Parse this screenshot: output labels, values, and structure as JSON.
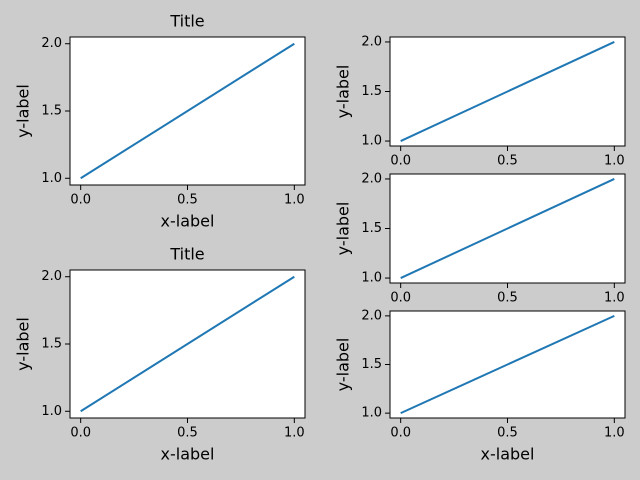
{
  "chart_data": [
    {
      "type": "line",
      "title": "Title",
      "x_label": "x-label",
      "y_label": "y-label",
      "x": [
        0,
        1
      ],
      "values": [
        1,
        2
      ],
      "color": "#1f77b4",
      "xlim": [
        -0.05,
        1.05
      ],
      "ylim": [
        0.95,
        2.05
      ],
      "xticks": [
        {
          "value": 0,
          "label": "0.0"
        },
        0.5,
        {
          "value": 1,
          "label": "1.0"
        }
      ],
      "yticks": [
        {
          "value": 1,
          "label": "1.0"
        },
        1.5,
        {
          "value": 2,
          "label": "2.0"
        }
      ]
    },
    {
      "type": "line",
      "y_label": "y-label",
      "x": [
        0,
        1
      ],
      "values": [
        1,
        2
      ],
      "color": "#1f77b4",
      "xlim": [
        -0.05,
        1.05
      ],
      "ylim": [
        0.95,
        2.05
      ],
      "xticks": [
        {
          "value": 0,
          "label": "0.0"
        },
        0.5,
        {
          "value": 1,
          "label": "1.0"
        }
      ],
      "yticks": [
        {
          "value": 1,
          "label": "1.0"
        },
        1.5,
        {
          "value": 2,
          "label": "2.0"
        }
      ]
    },
    {
      "type": "line",
      "y_label": "y-label",
      "x": [
        0,
        1
      ],
      "values": [
        1,
        2
      ],
      "color": "#1f77b4",
      "xlim": [
        -0.05,
        1.05
      ],
      "ylim": [
        0.95,
        2.05
      ],
      "xticks": [
        {
          "value": 0,
          "label": "0.0"
        },
        0.5,
        {
          "value": 1,
          "label": "1.0"
        }
      ],
      "yticks": [
        {
          "value": 1,
          "label": "1.0"
        },
        1.5,
        {
          "value": 2,
          "label": "2.0"
        }
      ]
    },
    {
      "type": "line",
      "title": "Title",
      "x_label": "x-label",
      "y_label": "y-label",
      "x": [
        0,
        1
      ],
      "values": [
        1,
        2
      ],
      "color": "#1f77b4",
      "xlim": [
        -0.05,
        1.05
      ],
      "ylim": [
        0.95,
        2.05
      ],
      "xticks": [
        {
          "value": 0,
          "label": "0.0"
        },
        0.5,
        {
          "value": 1,
          "label": "1.0"
        }
      ],
      "yticks": [
        {
          "value": 1,
          "label": "1.0"
        },
        1.5,
        {
          "value": 2,
          "label": "2.0"
        }
      ]
    },
    {
      "type": "line",
      "x_label": "x-label",
      "y_label": "y-label",
      "x": [
        0,
        1
      ],
      "values": [
        1,
        2
      ],
      "color": "#1f77b4",
      "xlim": [
        -0.05,
        1.05
      ],
      "ylim": [
        0.95,
        2.05
      ],
      "xticks": [
        {
          "value": 0,
          "label": "0.0"
        },
        0.5,
        {
          "value": 1,
          "label": "1.0"
        }
      ],
      "yticks": [
        {
          "value": 1,
          "label": "1.0"
        },
        1.5,
        {
          "value": 2,
          "label": "2.0"
        }
      ]
    }
  ]
}
